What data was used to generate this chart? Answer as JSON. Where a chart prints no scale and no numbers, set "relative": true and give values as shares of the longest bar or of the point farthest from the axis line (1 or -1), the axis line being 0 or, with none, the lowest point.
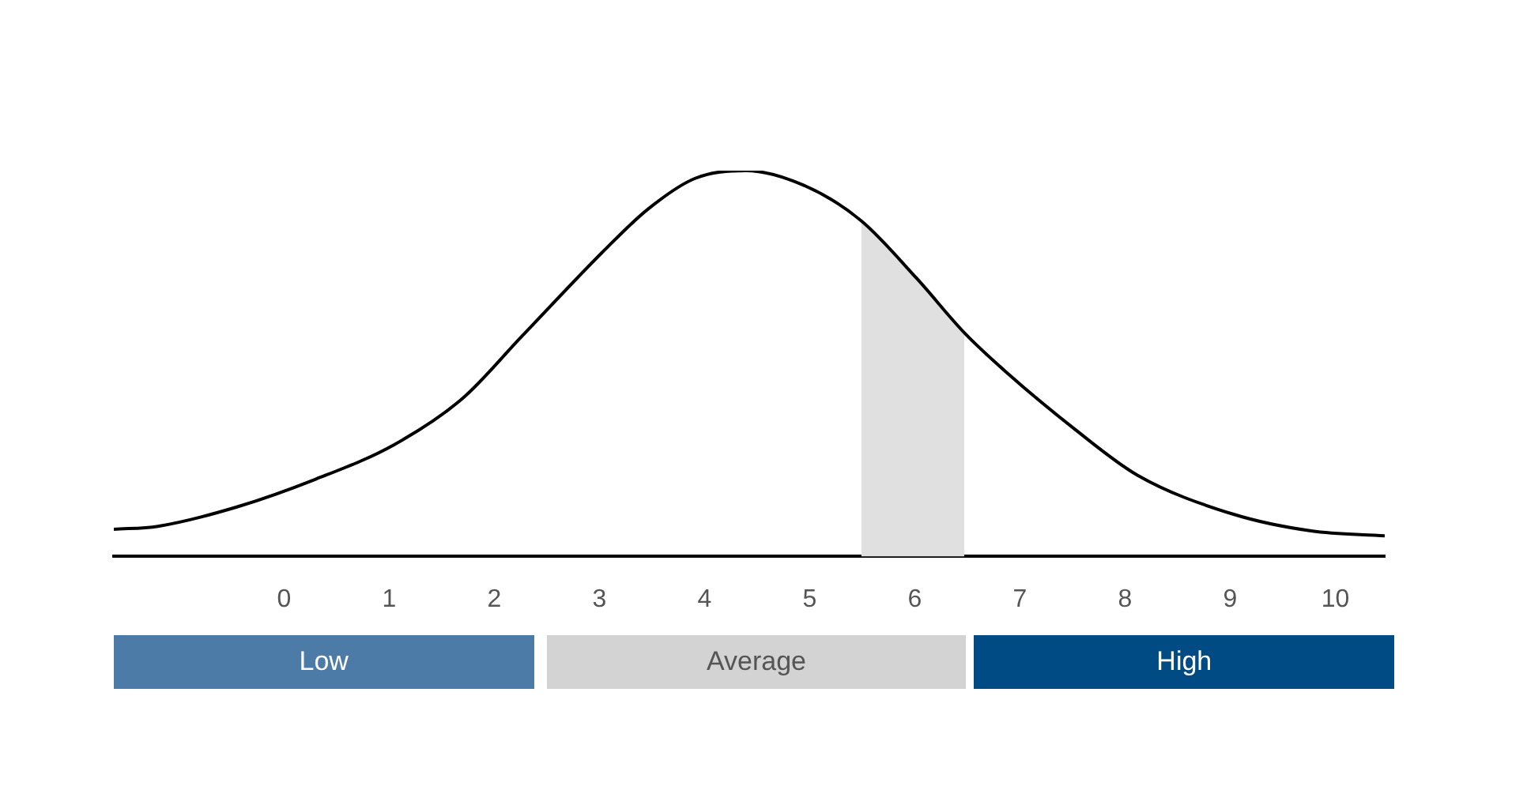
{
  "chart_data": {
    "type": "line",
    "relative": true,
    "marker": "none",
    "legend": false,
    "grid": false,
    "xlim": [
      -1.62,
      10.47
    ],
    "xticks": [
      0,
      1,
      2,
      3,
      4,
      5,
      6,
      7,
      8,
      9,
      10
    ],
    "series": [
      {
        "type": "area",
        "color": "#e0e0e0",
        "x": [
          5.49,
          6.02,
          6.47
        ],
        "values": [
          0.87,
          0.72,
          0.58
        ]
      },
      {
        "type": "line",
        "color": "#000000",
        "x": [
          -1.62,
          -1.2,
          -0.45,
          0.3,
          1.05,
          1.7,
          2.26,
          3.07,
          3.46,
          3.91,
          4.39,
          4.96,
          5.49,
          6.02,
          6.47,
          6.86,
          7.52,
          8.12,
          9.02,
          9.77,
          10.47
        ],
        "values": [
          0.07,
          0.078,
          0.128,
          0.2,
          0.29,
          0.41,
          0.57,
          0.8,
          0.9,
          0.98,
          1,
          0.96,
          0.87,
          0.72,
          0.58,
          0.48,
          0.33,
          0.21,
          0.11,
          0.066,
          0.053
        ]
      }
    ],
    "annotations": [
      "Low",
      "Average",
      "High"
    ]
  }
}
